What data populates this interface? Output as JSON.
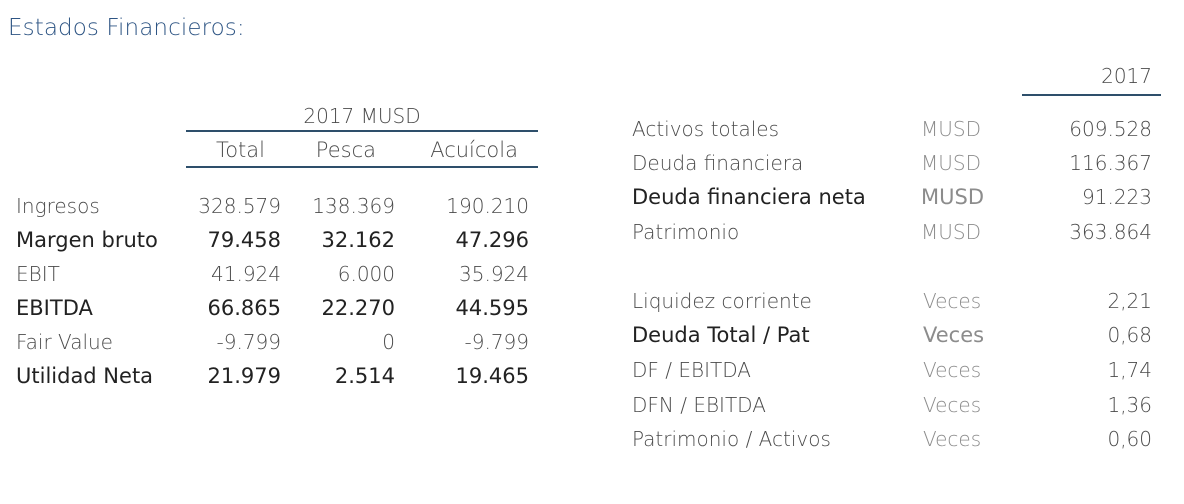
{
  "title": "Estados Financieros:",
  "left_table": {
    "group_header": "2017 MUSD",
    "columns": [
      "Total",
      "Pesca",
      "Acuícola"
    ],
    "rows": [
      {
        "label": "Ingresos",
        "values": [
          "328.579",
          "138.369",
          "190.210"
        ],
        "bold": false
      },
      {
        "label": "Margen bruto",
        "values": [
          "79.458",
          "32.162",
          "47.296"
        ],
        "bold": true
      },
      {
        "label": "EBIT",
        "values": [
          "41.924",
          "6.000",
          "35.924"
        ],
        "bold": false
      },
      {
        "label": "EBITDA",
        "values": [
          "66.865",
          "22.270",
          "44.595"
        ],
        "bold": true
      },
      {
        "label": "Fair Value",
        "values": [
          "-9.799",
          "0",
          "-9.799"
        ],
        "bold": false
      },
      {
        "label": "Utilidad Neta",
        "values": [
          "21.979",
          "2.514",
          "19.465"
        ],
        "bold": true
      }
    ]
  },
  "right_table": {
    "year_header": "2017",
    "group1": [
      {
        "label": "Activos totales",
        "unit": "MUSD",
        "value": "609.528",
        "bold": false
      },
      {
        "label": "Deuda financiera",
        "unit": "MUSD",
        "value": "116.367",
        "bold": false
      },
      {
        "label": "Deuda financiera neta",
        "unit": "MUSD",
        "value": "91.223",
        "bold": true
      },
      {
        "label": "Patrimonio",
        "unit": "MUSD",
        "value": "363.864",
        "bold": false
      }
    ],
    "group2": [
      {
        "label": "Liquidez corriente",
        "unit": "Veces",
        "value": "2,21",
        "bold": false
      },
      {
        "label": "Deuda Total / Pat",
        "unit": "Veces",
        "value": "0,68",
        "bold": true
      },
      {
        "label": "DF / EBITDA",
        "unit": "Veces",
        "value": "1,74",
        "bold": false
      },
      {
        "label": "DFN / EBITDA",
        "unit": "Veces",
        "value": "1,36",
        "bold": false
      },
      {
        "label": "Patrimonio / Activos",
        "unit": "Veces",
        "value": "0,60",
        "bold": false
      }
    ]
  }
}
